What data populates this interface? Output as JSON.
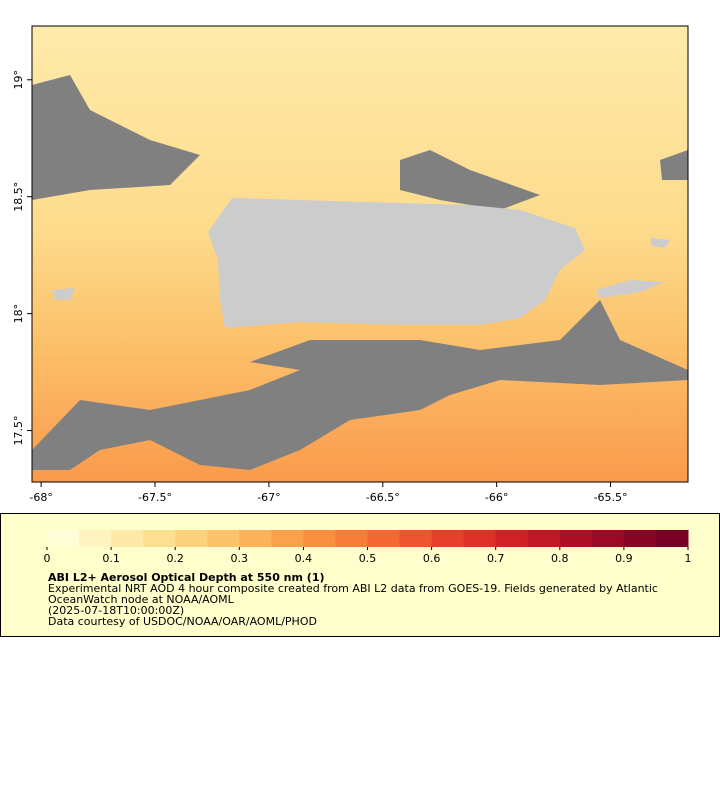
{
  "map": {
    "xlim": [
      -68.04,
      -65.16
    ],
    "ylim": [
      17.28,
      19.23
    ],
    "x_ticks": [
      {
        "value": -68,
        "label": "-68°"
      },
      {
        "value": -67.5,
        "label": "-67.5°"
      },
      {
        "value": -67,
        "label": "-67°"
      },
      {
        "value": -66.5,
        "label": "-66.5°"
      },
      {
        "value": -66,
        "label": "-66°"
      },
      {
        "value": -65.5,
        "label": "-65.5°"
      }
    ],
    "y_ticks": [
      {
        "value": 17.5,
        "label": "17.5°"
      },
      {
        "value": 18,
        "label": "18°"
      },
      {
        "value": 18.5,
        "label": "18.5°"
      },
      {
        "value": 19,
        "label": "19°"
      }
    ],
    "colorbar": {
      "lim": [
        0,
        1
      ],
      "ticks": [
        0,
        0.1,
        0.2,
        0.3,
        0.4,
        0.5,
        0.6,
        0.7,
        0.8,
        0.9,
        1
      ],
      "colors": [
        "#fffcd8",
        "#fff4c0",
        "#feeaa8",
        "#fddf92",
        "#fdd27e",
        "#fcc36a",
        "#fcb25a",
        "#fba14d",
        "#fa8f42",
        "#f87c3a",
        "#f56834",
        "#ef5430",
        "#e6402c",
        "#dc3029",
        "#cf2126",
        "#c01626",
        "#ae0e26",
        "#9c0826",
        "#8a0426",
        "#780026"
      ]
    },
    "legend": {
      "title": "ABI L2+ Aerosol Optical Depth at 550 nm (1)",
      "lines": [
        "Experimental NRT AOD 4 hour composite created from ABI L2 data from GOES-19. Fields generated by Atlantic",
        "OceanWatch node at NOAA/AOML",
        "(2025-07-18T10:00:00Z)",
        "Data courtesy of USDOC/NOAA/OAR/AOML/PHOD"
      ]
    }
  }
}
